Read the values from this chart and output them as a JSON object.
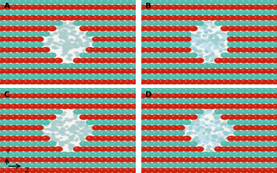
{
  "background_color": "#ffffff",
  "panel_labels": [
    "A",
    "B",
    "C",
    "D"
  ],
  "panel_label_fontsize": 8,
  "panel_label_fontweight": "bold",
  "panel_bg_color": "#f5f3f0",
  "figsize": [
    4.0,
    2.51
  ],
  "dpi": 100,
  "axis_label_y": "Y",
  "axis_label_z": "Z",
  "red_color": "#cc2211",
  "teal_color": "#55bbaa",
  "pore_mol_color": "#aacccc",
  "water_color": "#bbdddd",
  "wspace": 0.04,
  "hspace": 0.04
}
